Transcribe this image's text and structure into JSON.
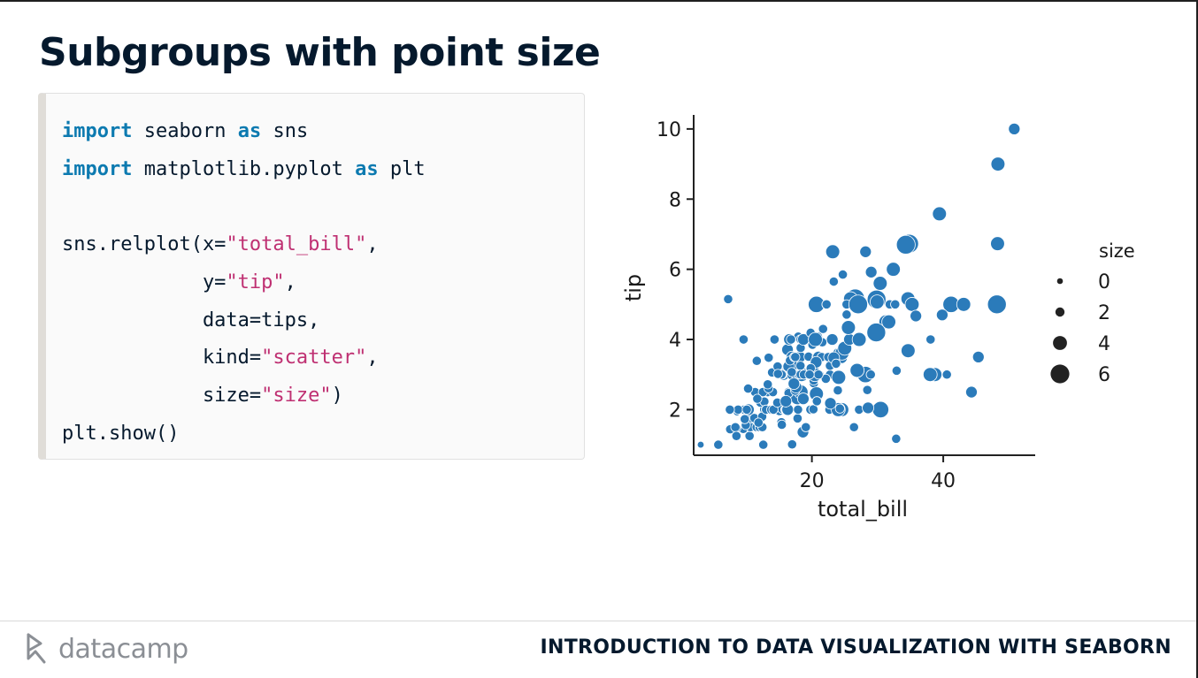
{
  "slide": {
    "title": "Subgroups with point size",
    "code_lines": [
      [
        {
          "t": "import",
          "c": "kw"
        },
        {
          "t": " seaborn ",
          "c": ""
        },
        {
          "t": "as",
          "c": "kw"
        },
        {
          "t": " sns",
          "c": ""
        }
      ],
      [
        {
          "t": "import",
          "c": "kw"
        },
        {
          "t": " matplotlib.pyplot ",
          "c": ""
        },
        {
          "t": "as",
          "c": "kw"
        },
        {
          "t": " plt",
          "c": ""
        }
      ],
      [],
      [
        {
          "t": "sns.relplot(x=",
          "c": ""
        },
        {
          "t": "\"total_bill\"",
          "c": "str"
        },
        {
          "t": ",",
          "c": ""
        }
      ],
      [
        {
          "t": "            y=",
          "c": ""
        },
        {
          "t": "\"tip\"",
          "c": "str"
        },
        {
          "t": ",",
          "c": ""
        }
      ],
      [
        {
          "t": "            data=tips,",
          "c": ""
        }
      ],
      [
        {
          "t": "            kind=",
          "c": ""
        },
        {
          "t": "\"scatter\"",
          "c": "str"
        },
        {
          "t": ",",
          "c": ""
        }
      ],
      [
        {
          "t": "            size=",
          "c": ""
        },
        {
          "t": "\"size\"",
          "c": "str"
        },
        {
          "t": ")",
          "c": ""
        }
      ],
      [
        {
          "t": "plt.show()",
          "c": ""
        }
      ]
    ]
  },
  "footer": {
    "brand": "datacamp",
    "course": "INTRODUCTION TO DATA VISUALIZATION WITH SEABORN"
  },
  "colors": {
    "point": "#2b7bba",
    "keyword": "#0c7ab0",
    "string": "#bf3072"
  },
  "chart_data": {
    "type": "scatter",
    "xlabel": "total_bill",
    "ylabel": "tip",
    "xlim": [
      2,
      54
    ],
    "ylim": [
      0.7,
      10.4
    ],
    "xticks": [
      20,
      40
    ],
    "yticks": [
      2,
      4,
      6,
      8,
      10
    ],
    "grid": false,
    "legend": {
      "title": "size",
      "position": "right",
      "entries": [
        0,
        2,
        4,
        6
      ]
    },
    "points": [
      {
        "x": 50.81,
        "y": 10.0,
        "s": 3
      },
      {
        "x": 48.33,
        "y": 9.0,
        "s": 4
      },
      {
        "x": 39.42,
        "y": 7.58,
        "s": 4
      },
      {
        "x": 48.27,
        "y": 6.73,
        "s": 4
      },
      {
        "x": 34.81,
        "y": 6.73,
        "s": 6
      },
      {
        "x": 28.17,
        "y": 6.5,
        "s": 3
      },
      {
        "x": 23.17,
        "y": 6.5,
        "s": 4
      },
      {
        "x": 32.4,
        "y": 6.0,
        "s": 4
      },
      {
        "x": 24.71,
        "y": 5.85,
        "s": 2
      },
      {
        "x": 29.03,
        "y": 5.92,
        "s": 3
      },
      {
        "x": 30.4,
        "y": 5.6,
        "s": 4
      },
      {
        "x": 23.33,
        "y": 5.65,
        "s": 2
      },
      {
        "x": 7.25,
        "y": 5.15,
        "s": 2
      },
      {
        "x": 26.59,
        "y": 5.17,
        "s": 6
      },
      {
        "x": 29.85,
        "y": 5.14,
        "s": 6
      },
      {
        "x": 34.63,
        "y": 5.16,
        "s": 4
      },
      {
        "x": 41.19,
        "y": 5.0,
        "s": 5
      },
      {
        "x": 43.11,
        "y": 5.0,
        "s": 4
      },
      {
        "x": 48.17,
        "y": 5.0,
        "s": 6
      },
      {
        "x": 20.69,
        "y": 5.0,
        "s": 5
      },
      {
        "x": 22.23,
        "y": 5.0,
        "s": 2
      },
      {
        "x": 27.28,
        "y": 5.0,
        "s": 5
      },
      {
        "x": 28.15,
        "y": 3.0,
        "s": 5
      },
      {
        "x": 35.26,
        "y": 5.0,
        "s": 4
      },
      {
        "x": 31.85,
        "y": 5.0,
        "s": 2
      },
      {
        "x": 38.73,
        "y": 3.0,
        "s": 4
      },
      {
        "x": 39.84,
        "y": 4.7,
        "s": 3
      },
      {
        "x": 45.35,
        "y": 3.5,
        "s": 3
      },
      {
        "x": 44.3,
        "y": 2.5,
        "s": 3
      },
      {
        "x": 40.55,
        "y": 3.0,
        "s": 2
      },
      {
        "x": 38.07,
        "y": 4.0,
        "s": 2
      },
      {
        "x": 34.65,
        "y": 3.68,
        "s": 4
      },
      {
        "x": 30.06,
        "y": 2.0,
        "s": 3
      },
      {
        "x": 31.27,
        "y": 4.5,
        "s": 4
      },
      {
        "x": 32.83,
        "y": 1.17,
        "s": 2
      },
      {
        "x": 29.8,
        "y": 4.2,
        "s": 6
      },
      {
        "x": 30.46,
        "y": 2.0,
        "s": 5
      },
      {
        "x": 38.01,
        "y": 3.0,
        "s": 4
      },
      {
        "x": 25.89,
        "y": 5.16,
        "s": 4
      },
      {
        "x": 24.55,
        "y": 2.0,
        "s": 4
      },
      {
        "x": 25.56,
        "y": 4.34,
        "s": 4
      },
      {
        "x": 26.88,
        "y": 3.12,
        "s": 4
      },
      {
        "x": 24.06,
        "y": 3.6,
        "s": 3
      },
      {
        "x": 22.76,
        "y": 3.0,
        "s": 2
      },
      {
        "x": 21.58,
        "y": 3.92,
        "s": 2
      },
      {
        "x": 17.92,
        "y": 4.08,
        "s": 2
      },
      {
        "x": 19.82,
        "y": 3.18,
        "s": 2
      },
      {
        "x": 16.29,
        "y": 3.71,
        "s": 3
      },
      {
        "x": 18.43,
        "y": 3.0,
        "s": 4
      },
      {
        "x": 20.65,
        "y": 3.35,
        "s": 3
      },
      {
        "x": 17.81,
        "y": 2.34,
        "s": 4
      },
      {
        "x": 16.97,
        "y": 3.5,
        "s": 3
      },
      {
        "x": 20.29,
        "y": 2.75,
        "s": 2
      },
      {
        "x": 15.77,
        "y": 2.23,
        "s": 2
      },
      {
        "x": 39.42,
        "y": 7.58,
        "s": 4
      },
      {
        "x": 19.44,
        "y": 3.0,
        "s": 2
      },
      {
        "x": 22.42,
        "y": 3.48,
        "s": 2
      },
      {
        "x": 25.28,
        "y": 5.0,
        "s": 2
      },
      {
        "x": 18.35,
        "y": 2.5,
        "s": 4
      },
      {
        "x": 15.06,
        "y": 3.0,
        "s": 2
      },
      {
        "x": 20.69,
        "y": 2.45,
        "s": 4
      },
      {
        "x": 17.78,
        "y": 3.27,
        "s": 2
      },
      {
        "x": 24.27,
        "y": 2.03,
        "s": 2
      },
      {
        "x": 26.41,
        "y": 1.5,
        "s": 2
      },
      {
        "x": 12.69,
        "y": 2.0,
        "s": 2
      },
      {
        "x": 16.93,
        "y": 3.07,
        "s": 2
      },
      {
        "x": 13.42,
        "y": 3.48,
        "s": 2
      },
      {
        "x": 3.07,
        "y": 1.0,
        "s": 1
      },
      {
        "x": 5.75,
        "y": 1.0,
        "s": 2
      },
      {
        "x": 7.74,
        "y": 1.44,
        "s": 2
      },
      {
        "x": 7.56,
        "y": 1.44,
        "s": 2
      },
      {
        "x": 8.58,
        "y": 1.92,
        "s": 1
      },
      {
        "x": 9.55,
        "y": 1.45,
        "s": 2
      },
      {
        "x": 10.07,
        "y": 1.83,
        "s": 1
      },
      {
        "x": 10.33,
        "y": 1.67,
        "s": 3
      },
      {
        "x": 10.51,
        "y": 1.25,
        "s": 2
      },
      {
        "x": 10.65,
        "y": 1.5,
        "s": 2
      },
      {
        "x": 11.24,
        "y": 1.76,
        "s": 2
      },
      {
        "x": 11.35,
        "y": 2.5,
        "s": 2
      },
      {
        "x": 11.59,
        "y": 1.5,
        "s": 2
      },
      {
        "x": 11.61,
        "y": 3.39,
        "s": 2
      },
      {
        "x": 12.03,
        "y": 1.5,
        "s": 2
      },
      {
        "x": 12.46,
        "y": 1.5,
        "s": 2
      },
      {
        "x": 12.6,
        "y": 1.0,
        "s": 2
      },
      {
        "x": 12.74,
        "y": 2.01,
        "s": 2
      },
      {
        "x": 13.0,
        "y": 2.0,
        "s": 2
      },
      {
        "x": 13.13,
        "y": 2.0,
        "s": 2
      },
      {
        "x": 13.27,
        "y": 2.5,
        "s": 2
      },
      {
        "x": 13.37,
        "y": 2.0,
        "s": 2
      },
      {
        "x": 13.51,
        "y": 2.0,
        "s": 2
      },
      {
        "x": 13.94,
        "y": 3.06,
        "s": 2
      },
      {
        "x": 14.07,
        "y": 2.5,
        "s": 2
      },
      {
        "x": 14.31,
        "y": 4.0,
        "s": 2
      },
      {
        "x": 14.48,
        "y": 2.0,
        "s": 2
      },
      {
        "x": 14.52,
        "y": 2.0,
        "s": 2
      },
      {
        "x": 14.78,
        "y": 3.23,
        "s": 2
      },
      {
        "x": 15.04,
        "y": 1.96,
        "s": 2
      },
      {
        "x": 15.36,
        "y": 1.64,
        "s": 2
      },
      {
        "x": 15.42,
        "y": 1.57,
        "s": 2
      },
      {
        "x": 15.48,
        "y": 2.02,
        "s": 2
      },
      {
        "x": 15.69,
        "y": 3.0,
        "s": 3
      },
      {
        "x": 15.95,
        "y": 2.0,
        "s": 2
      },
      {
        "x": 16.0,
        "y": 2.0,
        "s": 2
      },
      {
        "x": 16.21,
        "y": 2.0,
        "s": 2
      },
      {
        "x": 16.4,
        "y": 2.5,
        "s": 2
      },
      {
        "x": 16.45,
        "y": 2.47,
        "s": 2
      },
      {
        "x": 16.47,
        "y": 3.23,
        "s": 3
      },
      {
        "x": 16.58,
        "y": 4.0,
        "s": 3
      },
      {
        "x": 16.66,
        "y": 3.4,
        "s": 2
      },
      {
        "x": 16.82,
        "y": 4.0,
        "s": 2
      },
      {
        "x": 16.99,
        "y": 1.01,
        "s": 2
      },
      {
        "x": 17.07,
        "y": 3.0,
        "s": 3
      },
      {
        "x": 17.29,
        "y": 2.71,
        "s": 2
      },
      {
        "x": 17.31,
        "y": 3.5,
        "s": 2
      },
      {
        "x": 17.46,
        "y": 2.54,
        "s": 2
      },
      {
        "x": 17.51,
        "y": 3.0,
        "s": 2
      },
      {
        "x": 17.59,
        "y": 2.64,
        "s": 3
      },
      {
        "x": 17.82,
        "y": 1.75,
        "s": 2
      },
      {
        "x": 17.89,
        "y": 2.0,
        "s": 2
      },
      {
        "x": 18.04,
        "y": 3.0,
        "s": 2
      },
      {
        "x": 18.15,
        "y": 3.5,
        "s": 3
      },
      {
        "x": 18.24,
        "y": 3.76,
        "s": 2
      },
      {
        "x": 18.26,
        "y": 3.25,
        "s": 2
      },
      {
        "x": 18.28,
        "y": 4.0,
        "s": 2
      },
      {
        "x": 18.29,
        "y": 3.76,
        "s": 2
      },
      {
        "x": 18.64,
        "y": 1.36,
        "s": 3
      },
      {
        "x": 18.69,
        "y": 2.31,
        "s": 3
      },
      {
        "x": 18.71,
        "y": 4.0,
        "s": 3
      },
      {
        "x": 18.78,
        "y": 3.0,
        "s": 2
      },
      {
        "x": 19.08,
        "y": 1.5,
        "s": 2
      },
      {
        "x": 19.49,
        "y": 3.51,
        "s": 2
      },
      {
        "x": 19.65,
        "y": 3.0,
        "s": 2
      },
      {
        "x": 19.77,
        "y": 2.0,
        "s": 2
      },
      {
        "x": 19.81,
        "y": 4.19,
        "s": 2
      },
      {
        "x": 20.08,
        "y": 3.15,
        "s": 3
      },
      {
        "x": 20.23,
        "y": 2.01,
        "s": 2
      },
      {
        "x": 20.27,
        "y": 2.83,
        "s": 2
      },
      {
        "x": 20.45,
        "y": 3.0,
        "s": 4
      },
      {
        "x": 20.49,
        "y": 4.06,
        "s": 2
      },
      {
        "x": 20.53,
        "y": 4.0,
        "s": 4
      },
      {
        "x": 20.76,
        "y": 2.24,
        "s": 2
      },
      {
        "x": 20.9,
        "y": 3.5,
        "s": 3
      },
      {
        "x": 20.92,
        "y": 4.08,
        "s": 2
      },
      {
        "x": 21.01,
        "y": 3.5,
        "s": 3
      },
      {
        "x": 21.16,
        "y": 3.0,
        "s": 2
      },
      {
        "x": 21.5,
        "y": 3.5,
        "s": 2
      },
      {
        "x": 21.7,
        "y": 4.3,
        "s": 2
      },
      {
        "x": 22.12,
        "y": 2.88,
        "s": 2
      },
      {
        "x": 22.49,
        "y": 3.5,
        "s": 2
      },
      {
        "x": 22.67,
        "y": 2.0,
        "s": 2
      },
      {
        "x": 22.82,
        "y": 2.18,
        "s": 3
      },
      {
        "x": 23.1,
        "y": 4.0,
        "s": 3
      },
      {
        "x": 23.68,
        "y": 3.31,
        "s": 2
      },
      {
        "x": 23.95,
        "y": 2.55,
        "s": 2
      },
      {
        "x": 24.01,
        "y": 2.0,
        "s": 4
      },
      {
        "x": 24.08,
        "y": 2.92,
        "s": 4
      },
      {
        "x": 24.52,
        "y": 3.48,
        "s": 3
      },
      {
        "x": 24.59,
        "y": 3.61,
        "s": 4
      },
      {
        "x": 25.0,
        "y": 3.75,
        "s": 4
      },
      {
        "x": 25.21,
        "y": 4.29,
        "s": 2
      },
      {
        "x": 25.29,
        "y": 4.71,
        "s": 2
      },
      {
        "x": 25.71,
        "y": 4.0,
        "s": 3
      },
      {
        "x": 26.86,
        "y": 3.14,
        "s": 2
      },
      {
        "x": 27.05,
        "y": 5.0,
        "s": 6
      },
      {
        "x": 27.18,
        "y": 2.0,
        "s": 2
      },
      {
        "x": 27.2,
        "y": 4.0,
        "s": 4
      },
      {
        "x": 28.44,
        "y": 2.56,
        "s": 2
      },
      {
        "x": 28.55,
        "y": 2.05,
        "s": 3
      },
      {
        "x": 28.97,
        "y": 3.0,
        "s": 2
      },
      {
        "x": 29.93,
        "y": 5.07,
        "s": 4
      },
      {
        "x": 31.71,
        "y": 4.5,
        "s": 4
      },
      {
        "x": 32.68,
        "y": 5.0,
        "s": 2
      },
      {
        "x": 32.9,
        "y": 3.11,
        "s": 2
      },
      {
        "x": 34.3,
        "y": 6.7,
        "s": 6
      },
      {
        "x": 35.83,
        "y": 4.67,
        "s": 3
      },
      {
        "x": 9.68,
        "y": 2.0,
        "s": 2
      },
      {
        "x": 9.94,
        "y": 1.56,
        "s": 2
      },
      {
        "x": 10.29,
        "y": 2.6,
        "s": 2
      },
      {
        "x": 10.34,
        "y": 2.0,
        "s": 3
      },
      {
        "x": 8.52,
        "y": 1.48,
        "s": 2
      },
      {
        "x": 8.77,
        "y": 2.0,
        "s": 2
      },
      {
        "x": 8.35,
        "y": 1.5,
        "s": 2
      },
      {
        "x": 8.51,
        "y": 1.25,
        "s": 2
      },
      {
        "x": 9.78,
        "y": 1.73,
        "s": 2
      },
      {
        "x": 9.6,
        "y": 4.0,
        "s": 2
      },
      {
        "x": 12.16,
        "y": 2.2,
        "s": 2
      },
      {
        "x": 12.54,
        "y": 2.5,
        "s": 2
      },
      {
        "x": 12.43,
        "y": 1.8,
        "s": 2
      },
      {
        "x": 12.76,
        "y": 2.23,
        "s": 2
      },
      {
        "x": 13.03,
        "y": 2.0,
        "s": 2
      },
      {
        "x": 13.81,
        "y": 2.0,
        "s": 2
      },
      {
        "x": 13.39,
        "y": 2.61,
        "s": 2
      },
      {
        "x": 14.15,
        "y": 2.0,
        "s": 2
      },
      {
        "x": 14.73,
        "y": 2.2,
        "s": 2
      },
      {
        "x": 15.53,
        "y": 3.0,
        "s": 2
      },
      {
        "x": 16.31,
        "y": 2.0,
        "s": 3
      },
      {
        "x": 16.93,
        "y": 3.07,
        "s": 2
      },
      {
        "x": 17.47,
        "y": 3.5,
        "s": 2
      },
      {
        "x": 18.29,
        "y": 3.0,
        "s": 2
      },
      {
        "x": 19.44,
        "y": 3.0,
        "s": 2
      },
      {
        "x": 20.09,
        "y": 3.85,
        "s": 2
      },
      {
        "x": 20.65,
        "y": 3.35,
        "s": 3
      },
      {
        "x": 21.01,
        "y": 3.0,
        "s": 2
      },
      {
        "x": 22.75,
        "y": 3.25,
        "s": 2
      },
      {
        "x": 23.33,
        "y": 3.48,
        "s": 3
      },
      {
        "x": 24.27,
        "y": 2.03,
        "s": 2
      },
      {
        "x": 15.38,
        "y": 3.0,
        "s": 2
      },
      {
        "x": 11.69,
        "y": 2.31,
        "s": 2
      },
      {
        "x": 11.87,
        "y": 1.63,
        "s": 2
      },
      {
        "x": 13.28,
        "y": 2.72,
        "s": 2
      },
      {
        "x": 7.51,
        "y": 2.0,
        "s": 2
      },
      {
        "x": 10.09,
        "y": 2.0,
        "s": 2
      },
      {
        "x": 14.83,
        "y": 3.02,
        "s": 2
      },
      {
        "x": 16.04,
        "y": 2.24,
        "s": 3
      },
      {
        "x": 17.26,
        "y": 2.74,
        "s": 3
      },
      {
        "x": 18.78,
        "y": 3.0,
        "s": 2
      },
      {
        "x": 19.82,
        "y": 3.18,
        "s": 2
      },
      {
        "x": 22.23,
        "y": 5.0,
        "s": 2
      },
      {
        "x": 23.68,
        "y": 3.31,
        "s": 2
      },
      {
        "x": 25.56,
        "y": 4.34,
        "s": 4
      },
      {
        "x": 26.88,
        "y": 3.12,
        "s": 4
      },
      {
        "x": 21.58,
        "y": 3.92,
        "s": 2
      },
      {
        "x": 19.65,
        "y": 3.0,
        "s": 2
      },
      {
        "x": 20.53,
        "y": 4.0,
        "s": 4
      },
      {
        "x": 20.76,
        "y": 2.24,
        "s": 2
      },
      {
        "x": 22.82,
        "y": 2.18,
        "s": 3
      }
    ]
  }
}
